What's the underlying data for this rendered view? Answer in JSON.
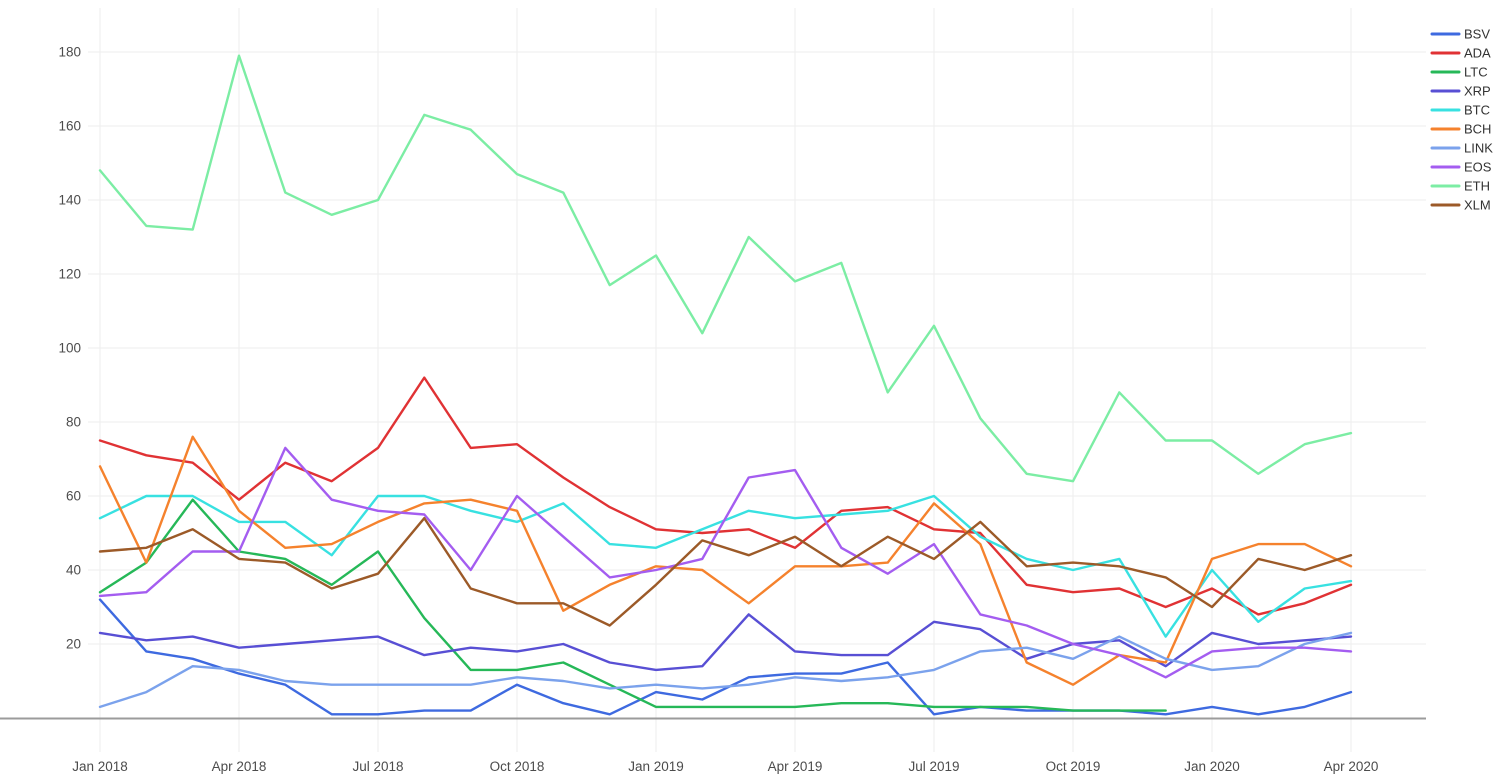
{
  "chart_data": {
    "type": "line",
    "title": "",
    "xlabel": "",
    "ylabel": "",
    "n_points": 28,
    "x_axis": {
      "tick_labels": [
        "Jan 2018",
        "Apr 2018",
        "Jul 2018",
        "Oct 2018",
        "Jan 2019",
        "Apr 2019",
        "Jul 2019",
        "Oct 2019",
        "Jan 2020",
        "Apr 2020"
      ],
      "tick_month_indices": [
        0,
        3,
        6,
        9,
        12,
        15,
        18,
        21,
        24,
        27
      ]
    },
    "y_axis": {
      "tick_labels": [
        "20",
        "40",
        "60",
        "80",
        "100",
        "120",
        "140",
        "160",
        "180"
      ],
      "tick_values": [
        20,
        40,
        60,
        80,
        100,
        120,
        140,
        160,
        180
      ],
      "range": [
        0,
        191
      ]
    },
    "grid": true,
    "legend_position": "top-right",
    "series": [
      {
        "name": "BSV",
        "color": "#3e6ae0",
        "values": [
          32,
          18,
          16,
          12,
          9,
          1,
          1,
          2,
          2,
          9,
          4,
          1,
          7,
          5,
          11,
          12,
          12,
          15,
          1,
          3,
          2,
          2,
          2,
          1,
          3,
          1,
          3,
          7
        ]
      },
      {
        "name": "ADA",
        "color": "#e03234",
        "values": [
          75,
          71,
          69,
          59,
          69,
          64,
          73,
          92,
          73,
          74,
          65,
          57,
          51,
          50,
          51,
          46,
          56,
          57,
          51,
          50,
          36,
          34,
          35,
          30,
          35,
          28,
          31,
          36
        ]
      },
      {
        "name": "LTC",
        "color": "#26b858",
        "values": [
          34,
          42,
          59,
          45,
          43,
          36,
          45,
          27,
          13,
          13,
          15,
          9,
          3,
          3,
          3,
          3,
          4,
          4,
          3,
          3,
          3,
          2,
          2,
          2,
          null,
          null,
          null,
          null
        ]
      },
      {
        "name": "XRP",
        "color": "#584fd4",
        "values": [
          23,
          21,
          22,
          19,
          20,
          21,
          22,
          17,
          19,
          18,
          20,
          15,
          13,
          14,
          28,
          18,
          17,
          17,
          26,
          24,
          16,
          20,
          21,
          14,
          23,
          20,
          21,
          22
        ]
      },
      {
        "name": "BTC",
        "color": "#38e1e1",
        "values": [
          54,
          60,
          60,
          53,
          53,
          44,
          60,
          60,
          56,
          53,
          58,
          47,
          46,
          51,
          56,
          54,
          55,
          56,
          60,
          49,
          43,
          40,
          43,
          22,
          40,
          26,
          35,
          37
        ]
      },
      {
        "name": "BCH",
        "color": "#f5822d",
        "values": [
          68,
          42,
          76,
          56,
          46,
          47,
          53,
          58,
          59,
          56,
          29,
          36,
          41,
          40,
          31,
          41,
          41,
          42,
          58,
          47,
          15,
          9,
          17,
          15,
          43,
          47,
          47,
          41
        ]
      },
      {
        "name": "LINK",
        "color": "#7ba2ec",
        "values": [
          3,
          7,
          14,
          13,
          10,
          9,
          9,
          9,
          9,
          11,
          10,
          8,
          9,
          8,
          9,
          11,
          10,
          11,
          13,
          18,
          19,
          16,
          22,
          16,
          13,
          14,
          20,
          23
        ]
      },
      {
        "name": "EOS",
        "color": "#a45df0",
        "values": [
          33,
          34,
          45,
          45,
          73,
          59,
          56,
          55,
          40,
          60,
          49,
          38,
          40,
          43,
          65,
          67,
          46,
          39,
          47,
          28,
          25,
          20,
          17,
          11,
          18,
          19,
          19,
          18
        ]
      },
      {
        "name": "ETH",
        "color": "#7ceda4",
        "values": [
          148,
          133,
          132,
          179,
          142,
          136,
          140,
          163,
          159,
          147,
          142,
          117,
          125,
          104,
          130,
          118,
          123,
          88,
          106,
          81,
          66,
          64,
          88,
          75,
          75,
          66,
          74,
          77
        ]
      },
      {
        "name": "XLM",
        "color": "#9c5a28",
        "values": [
          45,
          46,
          51,
          43,
          42,
          35,
          39,
          54,
          35,
          31,
          31,
          25,
          36,
          48,
          44,
          49,
          41,
          49,
          43,
          53,
          41,
          42,
          41,
          38,
          30,
          43,
          40,
          44
        ]
      }
    ]
  },
  "colors": {
    "background": "#ffffff",
    "gridline": "#ededed",
    "axis_line": "#9b9b9b",
    "tick_label": "#4c4c4c",
    "legend_label": "#333333"
  }
}
